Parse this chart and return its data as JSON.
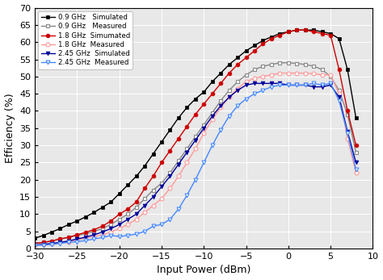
{
  "x": [
    -30,
    -29,
    -28,
    -27,
    -26,
    -25,
    -24,
    -23,
    -22,
    -21,
    -20,
    -19,
    -18,
    -17,
    -16,
    -15,
    -14,
    -13,
    -12,
    -11,
    -10,
    -9,
    -8,
    -7,
    -6,
    -5,
    -4,
    -3,
    -2,
    -1,
    0,
    1,
    2,
    3,
    4,
    5,
    6,
    7,
    8
  ],
  "y_09_sim": [
    3.0,
    3.8,
    4.8,
    5.8,
    7.0,
    8.0,
    9.2,
    10.5,
    12.0,
    13.5,
    16.0,
    18.5,
    21.0,
    24.0,
    27.5,
    31.0,
    34.5,
    38.0,
    41.0,
    43.5,
    45.5,
    48.5,
    51.0,
    53.5,
    55.5,
    57.5,
    59.0,
    60.5,
    61.5,
    62.5,
    63.0,
    63.5,
    63.5,
    63.5,
    63.0,
    62.5,
    61.0,
    52.0,
    38.0
  ],
  "y_09_meas": [
    1.5,
    1.8,
    2.2,
    2.8,
    3.2,
    3.8,
    4.3,
    5.0,
    5.8,
    7.0,
    8.5,
    10.0,
    12.0,
    14.5,
    17.0,
    19.0,
    22.0,
    25.5,
    29.0,
    32.5,
    36.0,
    39.5,
    43.0,
    46.0,
    48.5,
    50.5,
    52.0,
    53.0,
    53.5,
    54.0,
    54.0,
    53.8,
    53.5,
    53.0,
    52.0,
    50.0,
    46.0,
    39.0,
    28.0
  ],
  "y_18_sim": [
    1.5,
    1.8,
    2.2,
    2.8,
    3.3,
    4.0,
    4.7,
    5.5,
    6.5,
    8.0,
    10.0,
    11.5,
    13.5,
    17.5,
    21.0,
    25.0,
    28.5,
    32.0,
    35.5,
    39.0,
    42.0,
    45.0,
    48.0,
    51.0,
    53.5,
    55.5,
    57.5,
    59.5,
    61.0,
    62.0,
    63.0,
    63.5,
    63.5,
    63.0,
    62.5,
    62.0,
    52.0,
    40.0,
    30.0
  ],
  "y_18_meas": [
    1.0,
    1.2,
    1.5,
    1.8,
    2.0,
    2.5,
    3.0,
    3.5,
    4.0,
    4.8,
    5.8,
    7.0,
    8.5,
    10.5,
    12.5,
    14.5,
    17.5,
    21.0,
    25.0,
    29.0,
    33.5,
    37.5,
    41.0,
    44.0,
    46.5,
    48.5,
    49.5,
    50.0,
    50.5,
    51.0,
    51.0,
    51.0,
    51.0,
    50.8,
    50.5,
    50.5,
    45.0,
    32.0,
    22.0
  ],
  "y_245_sim": [
    1.0,
    1.2,
    1.5,
    1.8,
    2.2,
    2.8,
    3.3,
    4.0,
    4.8,
    5.8,
    7.0,
    8.5,
    10.0,
    12.5,
    15.0,
    18.0,
    21.0,
    24.5,
    28.0,
    31.5,
    35.0,
    38.5,
    41.5,
    44.0,
    46.0,
    47.5,
    48.0,
    48.0,
    48.0,
    48.0,
    47.5,
    47.5,
    47.5,
    47.0,
    47.0,
    47.5,
    44.0,
    34.0,
    25.0
  ],
  "y_245_meas": [
    1.0,
    1.0,
    1.2,
    1.5,
    1.8,
    2.0,
    2.3,
    2.8,
    3.2,
    3.8,
    3.5,
    3.8,
    4.2,
    5.0,
    6.5,
    7.0,
    8.5,
    11.5,
    15.5,
    20.0,
    25.0,
    30.0,
    34.5,
    38.5,
    41.5,
    43.5,
    45.0,
    46.0,
    47.0,
    47.5,
    47.5,
    47.5,
    47.5,
    48.0,
    47.5,
    48.0,
    43.0,
    33.5,
    23.0
  ],
  "xlim": [
    -30,
    10
  ],
  "ylim": [
    0,
    70
  ],
  "xticks": [
    -30,
    -25,
    -20,
    -15,
    -10,
    -5,
    0,
    5,
    10
  ],
  "yticks": [
    0,
    5,
    10,
    15,
    20,
    25,
    30,
    35,
    40,
    45,
    50,
    55,
    60,
    65,
    70
  ],
  "xlabel": "Input Power (dBm)",
  "ylabel": "Efficiency (%)",
  "legend_labels": [
    "0.9 GHz   Simulated",
    "0.9 GHz   Measured",
    "1.8 GHz  Simumated",
    "1.8 GHz  Measured",
    "2.45 GHz  Simulated",
    "2.45 GHz  Measured"
  ],
  "color_09_sim": "#000000",
  "color_09_meas": "#888888",
  "color_18_sim": "#cc0000",
  "color_18_meas": "#ff9999",
  "color_245_sim": "#000099",
  "color_245_meas": "#4488ff",
  "bg_color": "#e8e8e8"
}
